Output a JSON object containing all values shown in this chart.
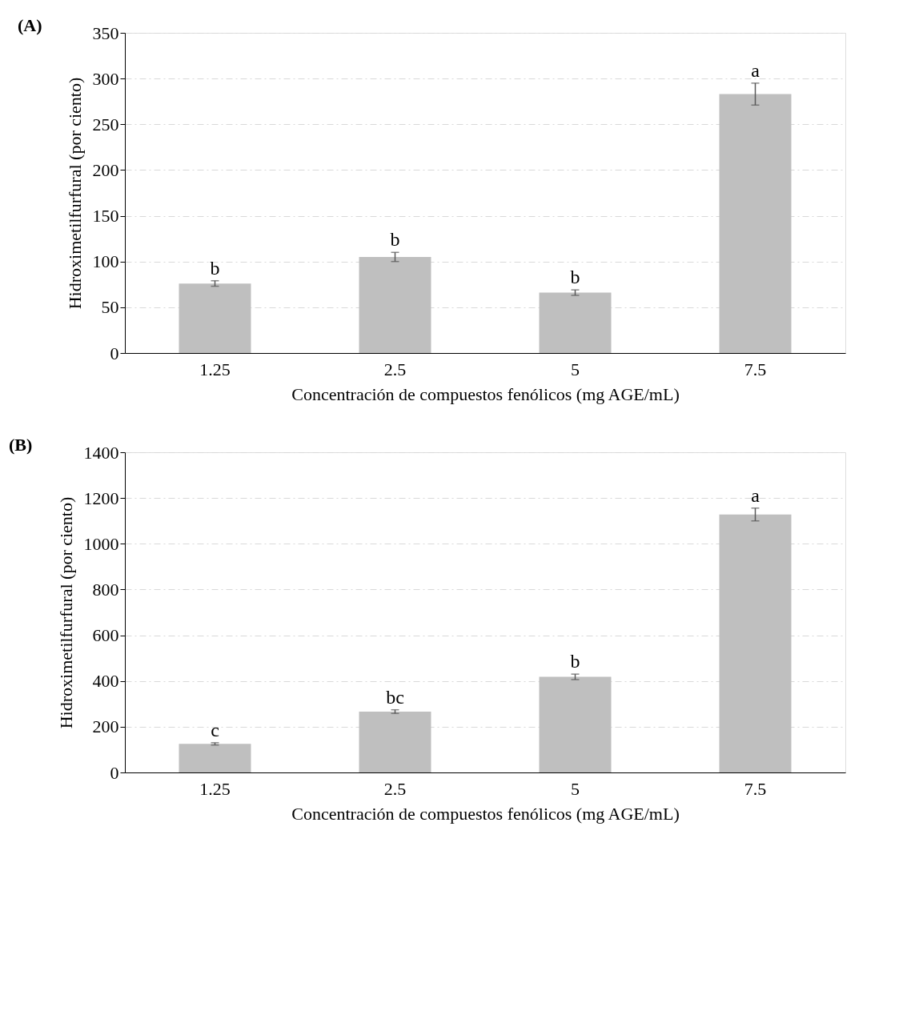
{
  "chart_data": [
    {
      "type": "bar",
      "title": "(A)",
      "xlabel": "Concentración de compuestos fenólicos (mg AGE/mL)",
      "ylabel": "Hidroximetilfurfural (por ciento)",
      "categories": [
        "1.25",
        "2.5",
        "5",
        "7.5"
      ],
      "values": [
        76,
        105,
        66,
        283
      ],
      "errors": [
        3,
        5,
        3,
        12
      ],
      "color": "#bfbfbf",
      "ylim": [
        0,
        350
      ],
      "yticks": [
        0,
        50,
        100,
        150,
        200,
        250,
        300,
        350
      ],
      "grid": "y",
      "annotations": [
        {
          "text": "b",
          "x": "1.25",
          "y": 79
        },
        {
          "text": "b",
          "x": "2.5",
          "y": 110
        },
        {
          "text": "b",
          "x": "5",
          "y": 69
        },
        {
          "text": "a",
          "x": "7.5",
          "y": 295
        }
      ]
    },
    {
      "type": "bar",
      "title": "(B)",
      "xlabel": "Concentración de compuestos fenólicos (mg AGE/mL)",
      "ylabel": "Hidroximetilfurfural (por ciento)",
      "categories": [
        "1.25",
        "2.5",
        "5",
        "7.5"
      ],
      "values": [
        125,
        266,
        418,
        1128
      ],
      "errors": [
        5,
        8,
        12,
        28
      ],
      "color": "#bfbfbf",
      "ylim": [
        0,
        1400
      ],
      "yticks": [
        0,
        200,
        400,
        600,
        800,
        1000,
        1200,
        1400
      ],
      "grid": "y",
      "annotations": [
        {
          "text": "c",
          "x": "1.25",
          "y": 130
        },
        {
          "text": "bc",
          "x": "2.5",
          "y": 274
        },
        {
          "text": "b",
          "x": "5",
          "y": 430
        },
        {
          "text": "a",
          "x": "7.5",
          "y": 1156
        }
      ]
    }
  ]
}
